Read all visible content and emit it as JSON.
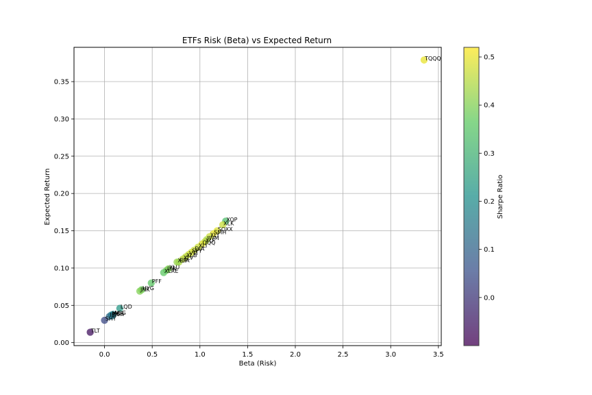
{
  "chart_data": {
    "type": "scatter",
    "title": "ETFs Risk (Beta) vs Expected Return",
    "xlabel": "Beta (Risk)",
    "ylabel": "Expected Return",
    "xlim": [
      -0.32,
      3.53
    ],
    "ylim": [
      -0.004,
      0.396
    ],
    "xticks": [
      0.0,
      0.5,
      1.0,
      1.5,
      2.0,
      2.5,
      3.0,
      3.5
    ],
    "yticks": [
      0.0,
      0.05,
      0.1,
      0.15,
      0.2,
      0.25,
      0.3,
      0.35
    ],
    "grid": true,
    "colorbar": {
      "label": "Sharpe Ratio",
      "range": [
        -0.1,
        0.52
      ],
      "ticks": [
        0.0,
        0.1,
        0.2,
        0.3,
        0.4,
        0.5
      ]
    },
    "points": [
      {
        "label": "TQQQ",
        "x": 3.35,
        "y": 0.379,
        "sharpe": 0.5
      },
      {
        "label": "XOP",
        "x": 1.27,
        "y": 0.163,
        "sharpe": 0.33
      },
      {
        "label": "XLK",
        "x": 1.24,
        "y": 0.158,
        "sharpe": 0.47
      },
      {
        "label": "SOXX",
        "x": 1.18,
        "y": 0.15,
        "sharpe": 0.49
      },
      {
        "label": "SMH",
        "x": 1.14,
        "y": 0.146,
        "sharpe": 0.5
      },
      {
        "label": "XLY",
        "x": 1.1,
        "y": 0.142,
        "sharpe": 0.47
      },
      {
        "label": "IWM",
        "x": 1.07,
        "y": 0.138,
        "sharpe": 0.44
      },
      {
        "label": "XLF",
        "x": 1.05,
        "y": 0.135,
        "sharpe": 0.46
      },
      {
        "label": "QQQ",
        "x": 1.02,
        "y": 0.132,
        "sharpe": 0.49
      },
      {
        "label": "XLI",
        "x": 0.98,
        "y": 0.128,
        "sharpe": 0.47
      },
      {
        "label": "DIA",
        "x": 0.94,
        "y": 0.124,
        "sharpe": 0.47
      },
      {
        "label": "SPY",
        "x": 0.91,
        "y": 0.121,
        "sharpe": 0.48
      },
      {
        "label": "VTI",
        "x": 0.88,
        "y": 0.118,
        "sharpe": 0.47
      },
      {
        "label": "XLB",
        "x": 0.85,
        "y": 0.115,
        "sharpe": 0.46
      },
      {
        "label": "XLV",
        "x": 0.82,
        "y": 0.112,
        "sharpe": 0.46
      },
      {
        "label": "EFA",
        "x": 0.78,
        "y": 0.108,
        "sharpe": 0.44
      },
      {
        "label": "XLP",
        "x": 0.76,
        "y": 0.108,
        "sharpe": 0.42
      },
      {
        "label": "XLU",
        "x": 0.67,
        "y": 0.099,
        "sharpe": 0.4
      },
      {
        "label": "IYR",
        "x": 0.65,
        "y": 0.097,
        "sharpe": 0.39
      },
      {
        "label": "XLRE",
        "x": 0.62,
        "y": 0.094,
        "sharpe": 0.36
      },
      {
        "label": "PFF",
        "x": 0.49,
        "y": 0.08,
        "sharpe": 0.36
      },
      {
        "label": "HYG",
        "x": 0.39,
        "y": 0.071,
        "sharpe": 0.38
      },
      {
        "label": "JNK",
        "x": 0.37,
        "y": 0.069,
        "sharpe": 0.4
      },
      {
        "label": "LQD",
        "x": 0.16,
        "y": 0.046,
        "sharpe": 0.23
      },
      {
        "label": "AGG",
        "x": 0.09,
        "y": 0.038,
        "sharpe": 0.17
      },
      {
        "label": "MBS",
        "x": 0.07,
        "y": 0.037,
        "sharpe": 0.18
      },
      {
        "label": "IEF",
        "x": 0.05,
        "y": 0.035,
        "sharpe": 0.12
      },
      {
        "label": "BSH",
        "x": 0.08,
        "y": 0.036,
        "sharpe": 0.15
      },
      {
        "label": "SHY",
        "x": 0.0,
        "y": 0.03,
        "sharpe": 0.04
      },
      {
        "label": "TLT",
        "x": -0.15,
        "y": 0.014,
        "sharpe": -0.07
      }
    ]
  }
}
